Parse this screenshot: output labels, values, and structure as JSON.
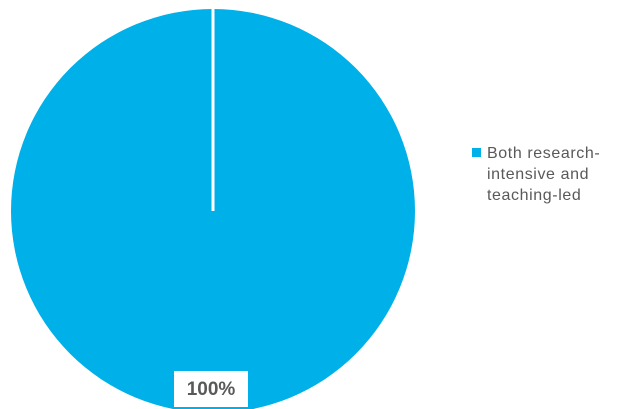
{
  "chart_data": {
    "type": "pie",
    "title": "",
    "slices": [
      {
        "label": "Both research-\nintensive and\nteaching-led",
        "value": 100,
        "data_label": "100%",
        "color": "#00B0E8"
      }
    ],
    "legend": {
      "position": "right"
    },
    "border_color": "#ffffff",
    "data_label_color": "#595959"
  }
}
